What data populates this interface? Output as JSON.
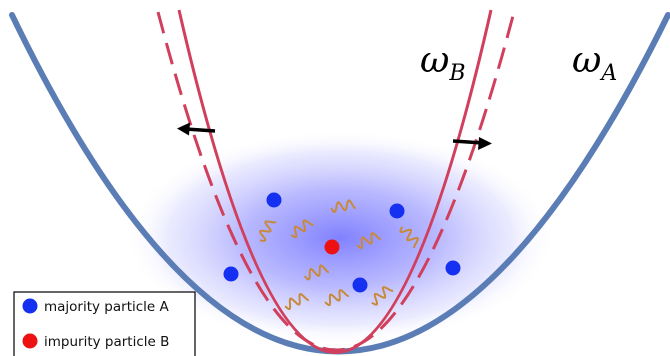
{
  "labels": {
    "omega_b": {
      "symbol": "ω",
      "sub": "B"
    },
    "omega_a": {
      "symbol": "ω",
      "sub": "A"
    }
  },
  "legend": {
    "majority": {
      "label": "majority particle A",
      "color": "#1530f0"
    },
    "impurity": {
      "label": "impurity particle B",
      "color": "#ee1111"
    }
  },
  "colors": {
    "trap_a": "#5b7db5",
    "trap_b": "#d0405c",
    "phonon": "#c88a3a",
    "cloud": "#6b6bff",
    "arrow": "#000000"
  },
  "particles": {
    "majority_count": 6,
    "impurity_count": 1,
    "phonon_count": 8
  }
}
